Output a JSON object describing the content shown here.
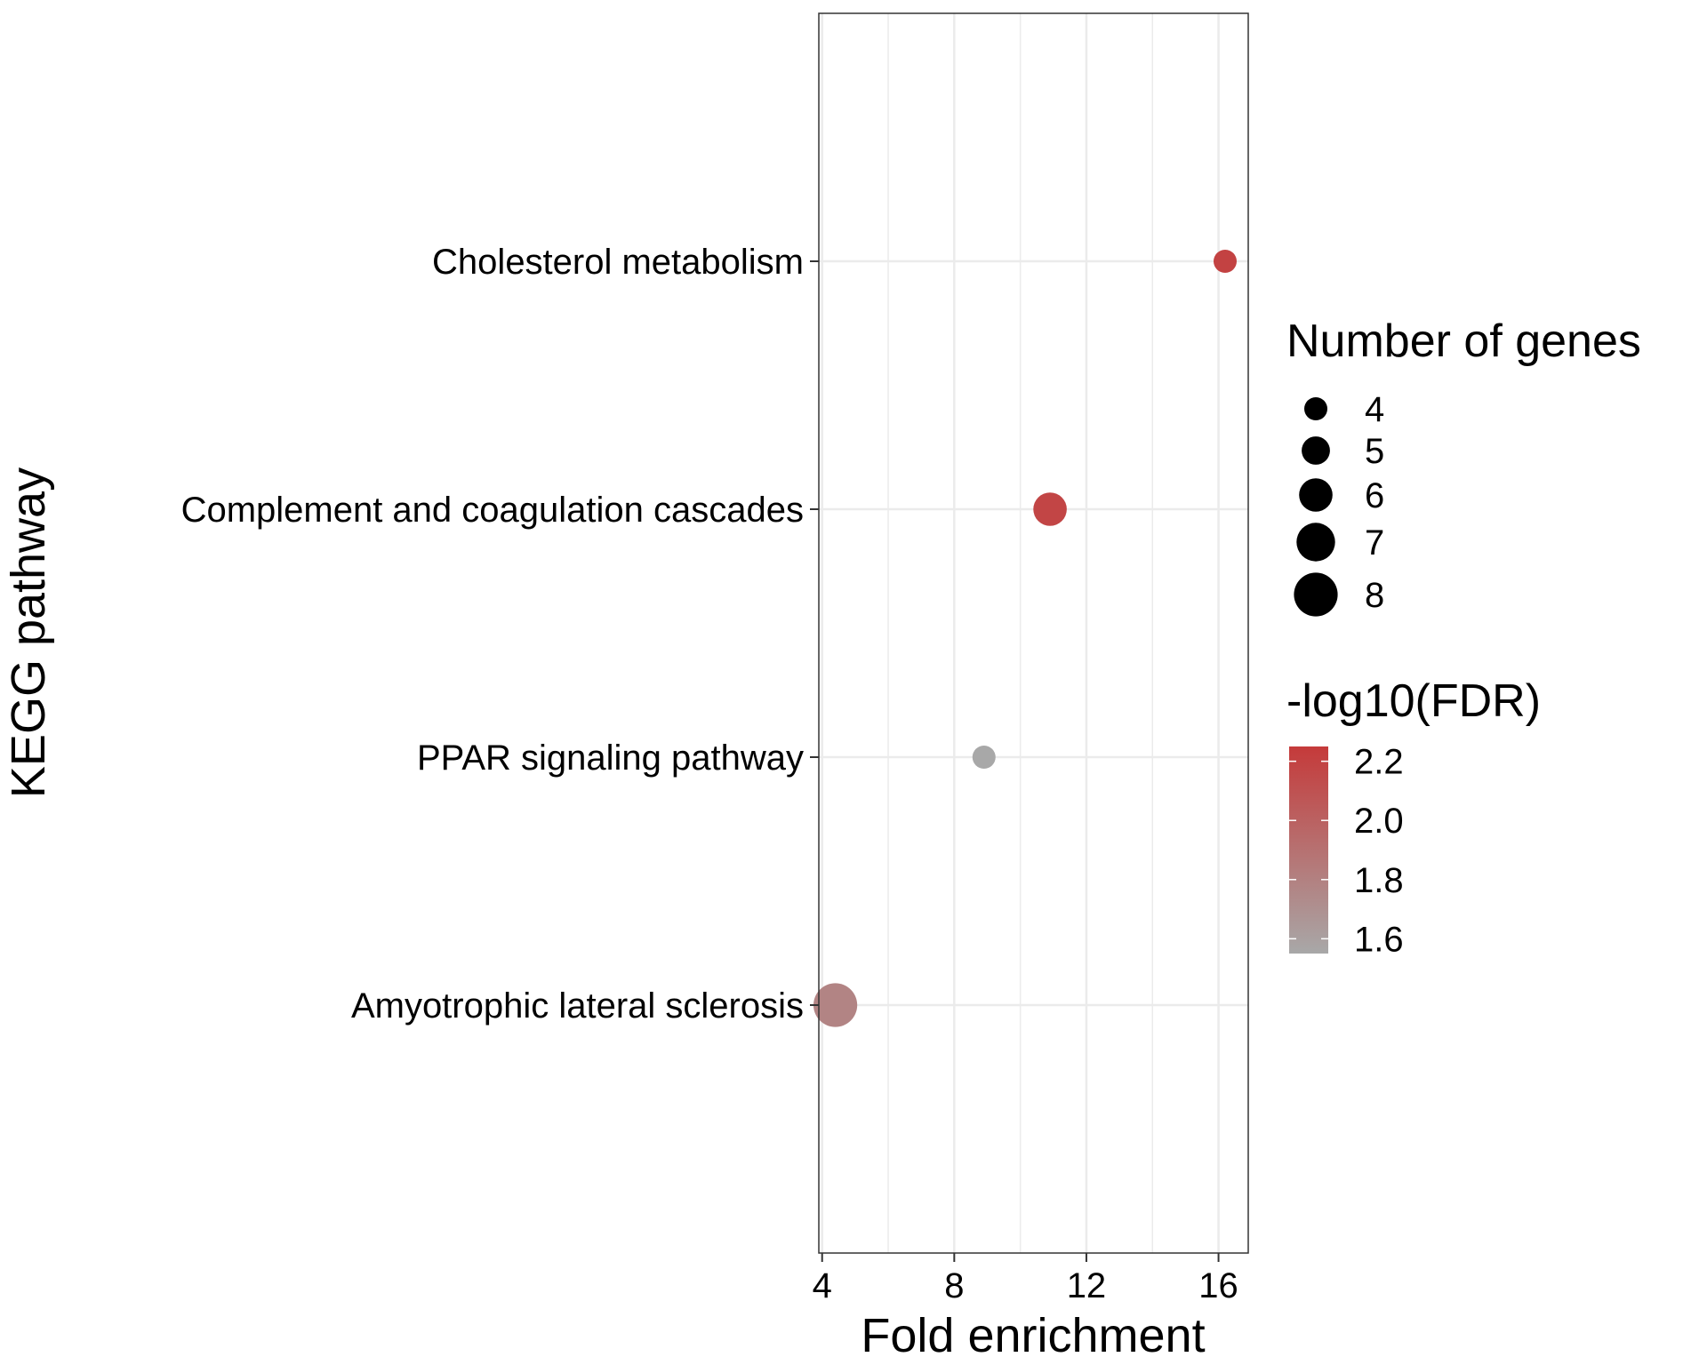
{
  "chart_data": {
    "type": "scatter",
    "xlabel": "Fold enrichment",
    "ylabel": "KEGG pathway",
    "xlim": [
      3.9,
      16.9
    ],
    "xticks": [
      4,
      8,
      12,
      16
    ],
    "categories": [
      "Cholesterol metabolism",
      "Complement and coagulation cascades",
      "PPAR signaling pathway",
      "Amyotrophic lateral sclerosis"
    ],
    "points": [
      {
        "category": "Cholesterol metabolism",
        "x": 16.2,
        "genes": 4,
        "neg_log10_fdr": 2.2
      },
      {
        "category": "Complement and coagulation cascades",
        "x": 10.9,
        "genes": 6,
        "neg_log10_fdr": 2.18
      },
      {
        "category": "PPAR signaling pathway",
        "x": 8.9,
        "genes": 4,
        "neg_log10_fdr": 1.55
      },
      {
        "category": "Amyotrophic lateral sclerosis",
        "x": 4.4,
        "genes": 8,
        "neg_log10_fdr": 1.78
      }
    ],
    "size_legend": {
      "title": "Number of genes",
      "values": [
        4,
        5,
        6,
        7,
        8
      ]
    },
    "color_legend": {
      "title": "-log10(FDR)",
      "ticks": [
        2.2,
        2.0,
        1.8,
        1.6
      ],
      "range": [
        1.55,
        2.25
      ],
      "low_color": "#a8a8a8",
      "high_color": "#c53a3a"
    },
    "grid": true,
    "legend_position": "right"
  }
}
